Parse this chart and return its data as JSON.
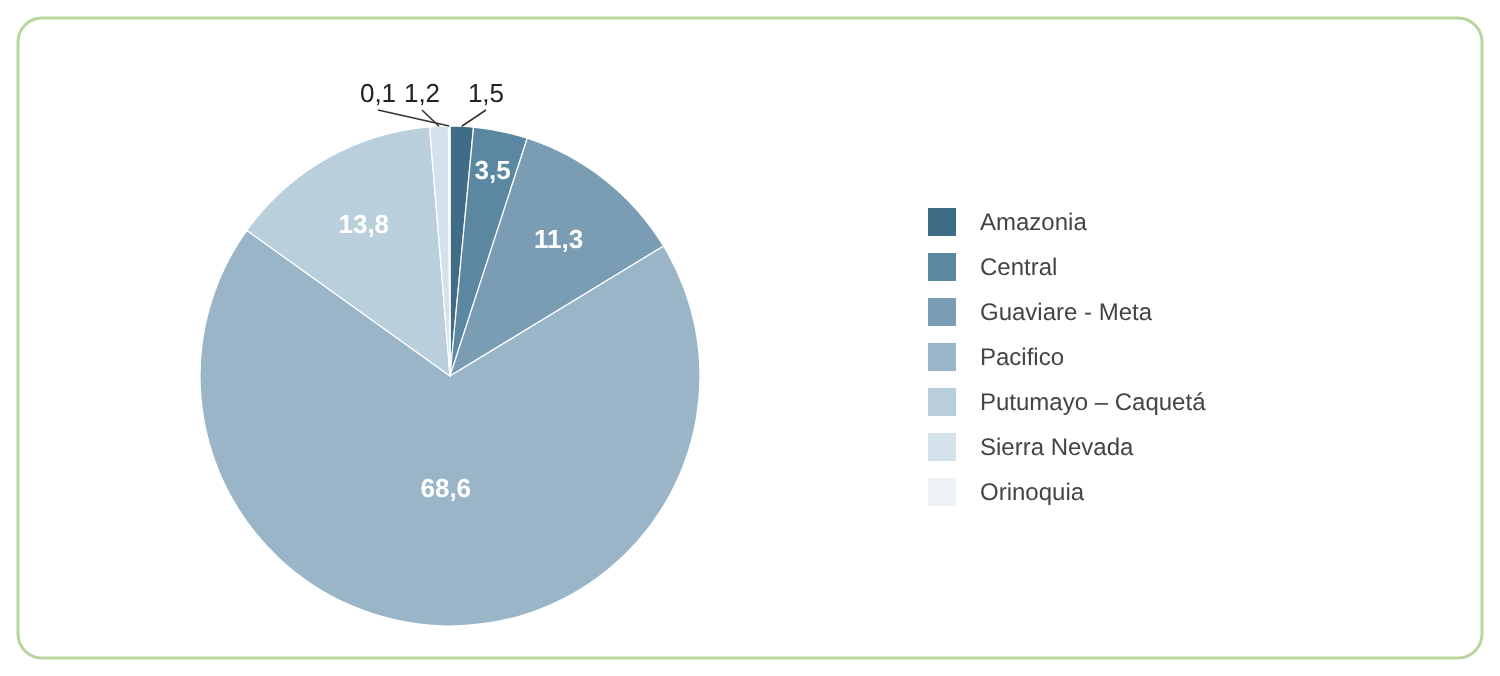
{
  "chart_data": {
    "type": "pie",
    "categories": [
      "Amazonia",
      "Central",
      "Guaviare - Meta",
      "Pacifico",
      "Putumayo – Caquetá",
      "Sierra Nevada",
      "Orinoquia"
    ],
    "values": [
      1.5,
      3.5,
      11.3,
      68.6,
      13.8,
      1.2,
      0.1
    ],
    "value_labels": [
      "1,5",
      "3,5",
      "11,3",
      "68,6",
      "13,8",
      "1,2",
      "0,1"
    ],
    "colors": [
      "#3f6c86",
      "#5b87a1",
      "#7b9db4",
      "#9ab5c8",
      "#b9d0dc",
      "#d4e2eb",
      "#eef2f5"
    ],
    "legend": "right"
  }
}
